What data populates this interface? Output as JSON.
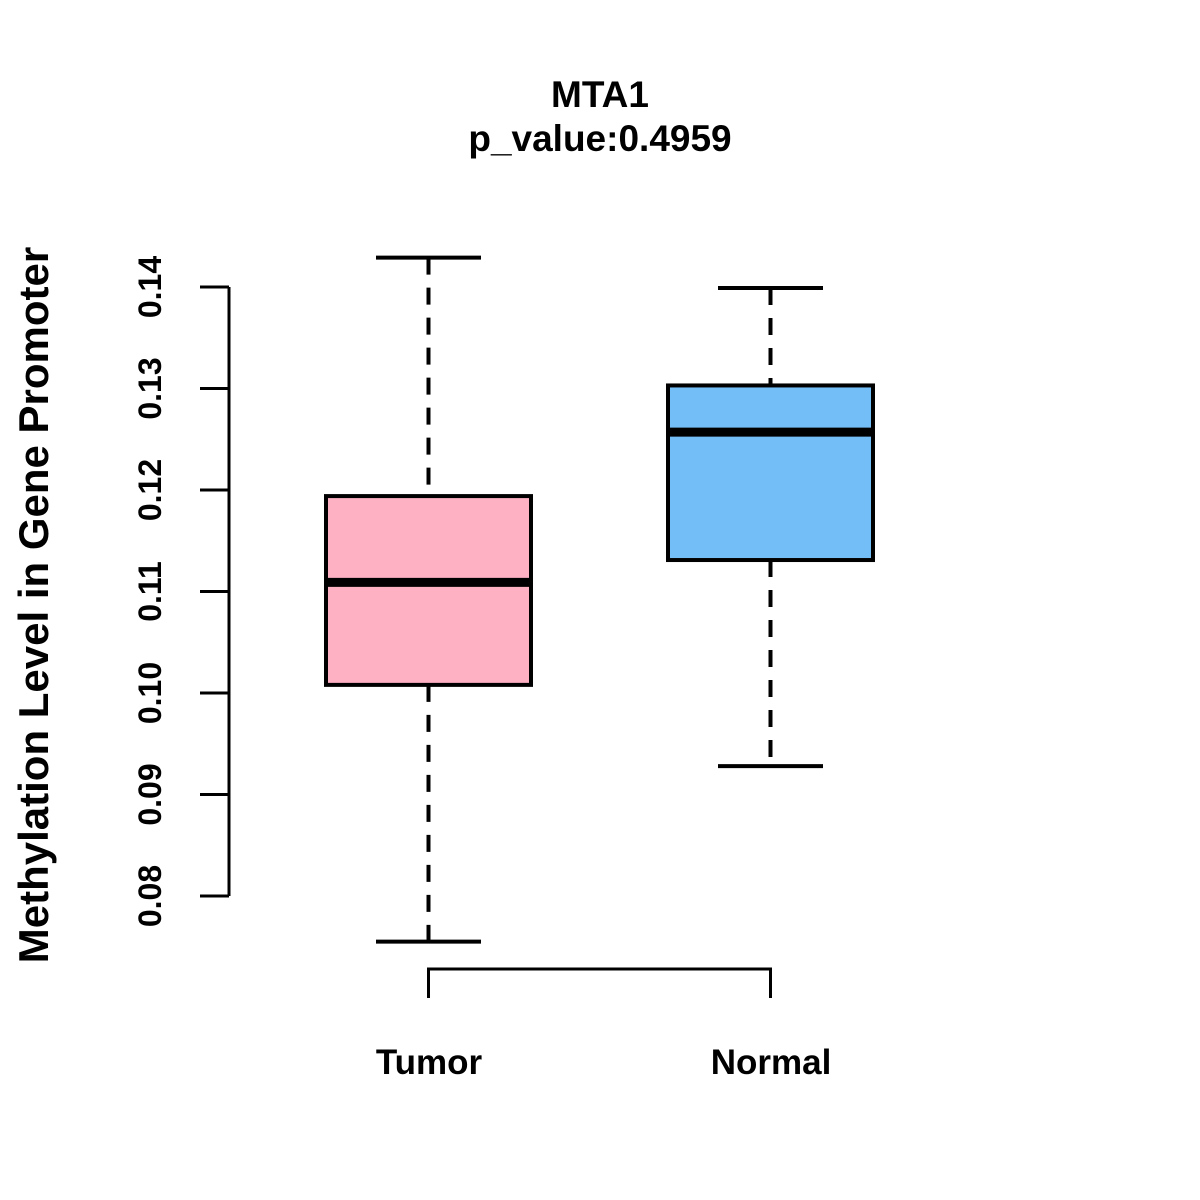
{
  "title": {
    "line1": "MTA1",
    "line2": "p_value:0.4959"
  },
  "y_axis": {
    "label": "Methylation Level in Gene Promoter",
    "tick_labels": [
      "0.08",
      "0.09",
      "0.10",
      "0.11",
      "0.12",
      "0.13",
      "0.14"
    ],
    "tick_values": [
      0.08,
      0.09,
      0.1,
      0.11,
      0.12,
      0.13,
      0.14
    ],
    "range": [
      0.08,
      0.14
    ]
  },
  "chart_data": {
    "type": "boxplot",
    "title": "MTA1",
    "subtitle": "p_value:0.4959",
    "p_value": 0.4959,
    "ylabel": "Methylation Level in Gene Promoter",
    "ylim": [
      0.08,
      0.14
    ],
    "grid": false,
    "legend": "none",
    "categories": [
      "Tumor",
      "Normal"
    ],
    "series": [
      {
        "name": "Tumor",
        "color": "#FFB1C4",
        "whisker_low": 0.0755,
        "q1": 0.1008,
        "median": 0.1109,
        "q3": 0.1194,
        "whisker_high": 0.1429
      },
      {
        "name": "Normal",
        "color": "#74BEF8",
        "whisker_low": 0.0928,
        "q1": 0.1131,
        "median": 0.1257,
        "q3": 0.1303,
        "whisker_high": 0.1399
      }
    ],
    "line_color": "#000000"
  }
}
